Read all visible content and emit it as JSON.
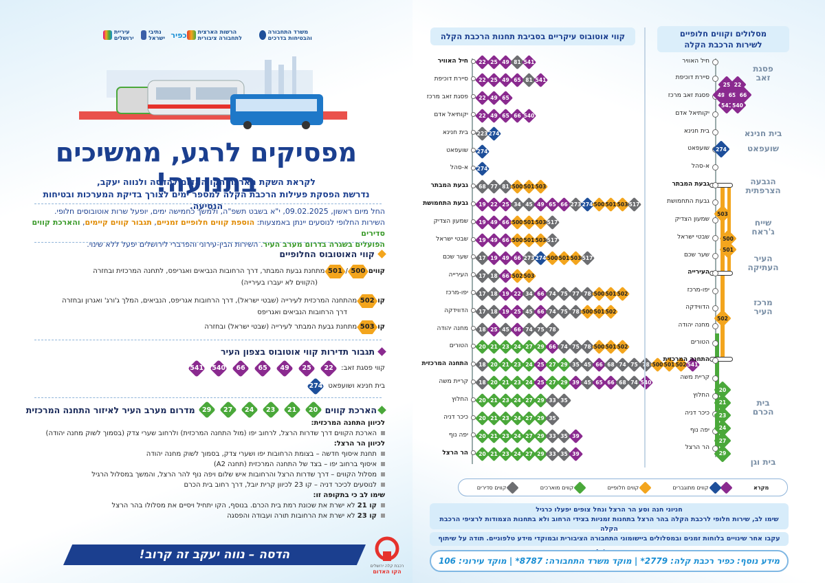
{
  "colors": {
    "purple": "#8a2a8f",
    "gray": "#6d6e71",
    "blue": "#1e4f9a",
    "green": "#4aa83a",
    "orange": "#f3a51d",
    "navy": "#1b3f8f"
  },
  "logos": [
    "משרד התחבורה והבטיחות בדרכים",
    "הרשות הארצית לתחבורה ציבורית",
    "כפיר",
    "נתיבי ישראל",
    "הרשות לפיתוח ירושלים",
    "עיריית ירושלים"
  ],
  "title": "מפסיקים לרגע, ממשיכים בתנועה!",
  "subtitle": [
    "לקראת השקת הארכת הקו האדום להדסה ולנווה יעקב,",
    "נדרשת הפסקת פעילות הרכבת הקלה למספר ימים לצורך בדיקת המערכות ובטיחות הנסיעה."
  ],
  "intro": {
    "l1": "החל מיום ראשון, 09.02.2025, י\"א בשבט תשפ\"ה, ולמשך כחמישה ימים, יופעל שרות אוטובוסים חלופי.",
    "l2a": "השירות החלופי לנוסעים יינתן באמצעות: ",
    "l2b": "הוספת קווים חלופיים זמניים",
    "l2c": ", ",
    "l2d": "תגבור קווים קיימים",
    "l2e": ", ",
    "l2f": "והארכת קווים סדירים",
    "l3a": "הפועלים בשגרה בדרום מערב העיר",
    "l3b": ". השירות הבין-עירוני והפרברי לירושלים יפעל ללא שינוי."
  },
  "alt": {
    "head": "קווי האוטובוס החלופיים",
    "r1_prefix": "קווים",
    "r1_sep": "/",
    "r1_text": "מתחנת גבעת המבתר, דרך הרחובות הנביאים ואגריפס, לתחנה המרכזית ובחזרה",
    "r1_text2": "(הקווים לא יעברו בעירייה)",
    "r2_prefix": "קו",
    "r2_text": "מהתחנה המרכזית לעירייה (שבטי ישראל), דרך הרחובות אגריפס, הנביאים, המלך ג'ורג' ואגרון ובחזרה",
    "r2_text2": "דרך הרחובות הנביאים ואגריפס",
    "r3_prefix": "קו",
    "r3_text": "מתחנת גבעת המבתר לעירייה (שבטי ישראל) ובחזרה",
    "lines": [
      "500",
      "501",
      "502",
      "503"
    ]
  },
  "north": {
    "head": "תגבור תדירות קווי אוטובוס בצפון העיר",
    "r1": "קווי פסגת זאב:",
    "r1_lines": [
      "22",
      "25",
      "49",
      "65",
      "66",
      "540",
      "541"
    ],
    "r2": "בית חנינא ושועפאט",
    "r2_lines": [
      "274"
    ]
  },
  "ext": {
    "head_a": "הארכת קווים",
    "head_b": "מדרום מערב העיר לאיזור התחנה המרכזית",
    "lines": [
      "20",
      "21",
      "23",
      "24",
      "27",
      "29"
    ],
    "to_cbs": "לכיוון התחנה המרכזית:",
    "to_cbs_1": "הארכת הקווים דרך שדרות הרצל, לרחוב יפו (מול התחנה המרכזית) ולרחוב שערי צדק (בסמוך לשוק מחנה יהודה)",
    "to_herzl": "לכיוון הר הרצל:",
    "to_herzl_1": "תחנת איסוף חדשה – בצומת הרחובות יפו ושערי צדק, בסמוך לשוק מחנה יהודה",
    "to_herzl_2": "איסוף ברחוב יפו – בצד של התחנה המרכזית (תחנה A2)",
    "to_herzl_3": "מסלול הקווים – דרך שדרות הרצל והרחובות איש שלום ויפה נוף להר הרצל, והמשך במסלול הרגיל",
    "to_herzl_4": "לנוסעים לכיכר דניה – קו 23 לכיוון קרית יובל, דרך רחוב בית הכרם",
    "note_head": "שימו לב כי בתקופה זו:",
    "note_1a": "קו 21",
    "note_1b": " לא ישרת את שכונת רמת בית הכרם. בנוסף, הקו יתחיל ויסיים את מסלולו בהר הרצל",
    "note_2a": "קו 23",
    "note_2b": " לא ישרת את הרחובות תורה ועבודה והפסגה"
  },
  "banner": "הדסה – נווה יעקב זה קרוב!",
  "redline": {
    "top": "רכבת קלה ירושלים",
    "bottom": "הקו האדום"
  },
  "main_title": "קווי אוטובוס עיקריים בסביבת תחנות הרכבת הקלה",
  "alt_title": [
    "מסלולים וקווים חלופיים",
    "לשירות הרכבת הקלה"
  ],
  "stations": [
    {
      "name": "חיל האוויר",
      "bold": true,
      "chips": [
        [
          "22",
          "p"
        ],
        [
          "25",
          "p"
        ],
        [
          "49",
          "p"
        ],
        [
          "81",
          "g"
        ],
        [
          "541",
          "p"
        ]
      ]
    },
    {
      "name": "סיירת דוכיפת",
      "bold": false,
      "chips": [
        [
          "22",
          "p"
        ],
        [
          "25",
          "p"
        ],
        [
          "49",
          "p"
        ],
        [
          "65",
          "p"
        ],
        [
          "81",
          "g"
        ],
        [
          "541",
          "p"
        ]
      ]
    },
    {
      "name": "פסגת זאב מרכז",
      "bold": false,
      "chips": [
        [
          "22",
          "p"
        ],
        [
          "49",
          "p"
        ],
        [
          "65",
          "p"
        ]
      ]
    },
    {
      "name": "יקותיאל אדם",
      "bold": false,
      "chips": [
        [
          "22",
          "p"
        ],
        [
          "49",
          "p"
        ],
        [
          "65",
          "p"
        ],
        [
          "66",
          "p"
        ],
        [
          "540",
          "p"
        ]
      ]
    },
    {
      "name": "בית חנינא",
      "bold": false,
      "chips": [
        [
          "223",
          "g"
        ],
        [
          "274",
          "b"
        ]
      ]
    },
    {
      "name": "שועפאט",
      "bold": false,
      "chips": [
        [
          "274",
          "b"
        ]
      ]
    },
    {
      "name": "א-סהל",
      "bold": false,
      "chips": [
        [
          "274",
          "b"
        ]
      ]
    },
    {
      "name": "גבעת המבתר",
      "bold": true,
      "chips": [
        [
          "68",
          "g"
        ],
        [
          "77",
          "g"
        ],
        [
          "81",
          "g"
        ],
        [
          "500",
          "o"
        ],
        [
          "501",
          "o"
        ],
        [
          "503",
          "o"
        ]
      ]
    },
    {
      "name": "גבעת התחמושת",
      "bold": true,
      "chips": [
        [
          "19",
          "p"
        ],
        [
          "22",
          "p"
        ],
        [
          "25",
          "p"
        ],
        [
          "34",
          "g"
        ],
        [
          "45",
          "g"
        ],
        [
          "49",
          "p"
        ],
        [
          "65",
          "p"
        ],
        [
          "66",
          "p"
        ],
        [
          "273",
          "g"
        ],
        [
          "274",
          "b"
        ],
        [
          "500",
          "o"
        ],
        [
          "501",
          "o"
        ],
        [
          "503",
          "o"
        ],
        [
          "517",
          "g"
        ]
      ]
    },
    {
      "name": "שמעון הצדיק",
      "bold": false,
      "chips": [
        [
          "19",
          "p"
        ],
        [
          "49",
          "p"
        ],
        [
          "66",
          "p"
        ],
        [
          "500",
          "o"
        ],
        [
          "501",
          "o"
        ],
        [
          "503",
          "o"
        ],
        [
          "517",
          "g"
        ]
      ]
    },
    {
      "name": "שבטי ישראל",
      "bold": false,
      "chips": [
        [
          "19",
          "p"
        ],
        [
          "49",
          "p"
        ],
        [
          "66",
          "p"
        ],
        [
          "500",
          "o"
        ],
        [
          "501",
          "o"
        ],
        [
          "503",
          "o"
        ],
        [
          "517",
          "g"
        ]
      ]
    },
    {
      "name": "שער שכם",
      "bold": false,
      "chips": [
        [
          "17",
          "g"
        ],
        [
          "19",
          "p"
        ],
        [
          "49",
          "p"
        ],
        [
          "66",
          "p"
        ],
        [
          "273",
          "g"
        ],
        [
          "274",
          "b"
        ],
        [
          "500",
          "o"
        ],
        [
          "501",
          "o"
        ],
        [
          "503",
          "o"
        ],
        [
          "517",
          "g"
        ]
      ]
    },
    {
      "name": "העירייה",
      "bold": false,
      "chips": [
        [
          "17",
          "g"
        ],
        [
          "18",
          "g"
        ],
        [
          "66",
          "p"
        ],
        [
          "502",
          "o"
        ],
        [
          "503",
          "o"
        ]
      ]
    },
    {
      "name": "יפו-מרכז",
      "bold": false,
      "chips": [
        [
          "17",
          "g"
        ],
        [
          "18",
          "g"
        ],
        [
          "19",
          "p"
        ],
        [
          "22",
          "p"
        ],
        [
          "34",
          "g"
        ],
        [
          "66",
          "p"
        ],
        [
          "74",
          "g"
        ],
        [
          "75",
          "g"
        ],
        [
          "77",
          "g"
        ],
        [
          "78",
          "g"
        ],
        [
          "500",
          "o"
        ],
        [
          "501",
          "o"
        ],
        [
          "502",
          "o"
        ]
      ]
    },
    {
      "name": "הדווידקה",
      "bold": false,
      "chips": [
        [
          "17",
          "g"
        ],
        [
          "18",
          "g"
        ],
        [
          "19",
          "p"
        ],
        [
          "25",
          "p"
        ],
        [
          "45",
          "g"
        ],
        [
          "66",
          "p"
        ],
        [
          "74",
          "g"
        ],
        [
          "75",
          "g"
        ],
        [
          "78",
          "g"
        ],
        [
          "500",
          "o"
        ],
        [
          "501",
          "o"
        ],
        [
          "502",
          "o"
        ]
      ]
    },
    {
      "name": "מחנה יהודה",
      "bold": false,
      "chips": [
        [
          "18",
          "g"
        ],
        [
          "25",
          "p"
        ],
        [
          "45",
          "g"
        ],
        [
          "66",
          "p"
        ],
        [
          "74",
          "g"
        ],
        [
          "75",
          "g"
        ],
        [
          "78",
          "g"
        ]
      ]
    },
    {
      "name": "הטורים",
      "bold": false,
      "chips": [
        [
          "20",
          "G"
        ],
        [
          "21",
          "G"
        ],
        [
          "23",
          "G"
        ],
        [
          "24",
          "G"
        ],
        [
          "27",
          "G"
        ],
        [
          "29",
          "G"
        ],
        [
          "66",
          "p"
        ],
        [
          "74",
          "g"
        ],
        [
          "75",
          "g"
        ],
        [
          "78",
          "g"
        ],
        [
          "500",
          "o"
        ],
        [
          "501",
          "o"
        ],
        [
          "502",
          "o"
        ]
      ]
    },
    {
      "name": "התחנה המרכזית",
      "bold": true,
      "chips": [
        [
          "18",
          "g"
        ],
        [
          "20",
          "G"
        ],
        [
          "21",
          "G"
        ],
        [
          "23",
          "G"
        ],
        [
          "24",
          "G"
        ],
        [
          "25",
          "p"
        ],
        [
          "27",
          "G"
        ],
        [
          "29",
          "G"
        ],
        [
          "35",
          "g"
        ],
        [
          "45",
          "g"
        ],
        [
          "66",
          "p"
        ],
        [
          "68",
          "g"
        ],
        [
          "74",
          "g"
        ],
        [
          "75",
          "g"
        ],
        [
          "78",
          "g"
        ],
        [
          "500",
          "o"
        ],
        [
          "501",
          "o"
        ],
        [
          "502",
          "o"
        ],
        [
          "541",
          "p"
        ]
      ]
    },
    {
      "name": "קריית משה",
      "bold": false,
      "chips": [
        [
          "18",
          "g"
        ],
        [
          "20",
          "G"
        ],
        [
          "21",
          "G"
        ],
        [
          "23",
          "G"
        ],
        [
          "24",
          "G"
        ],
        [
          "25",
          "p"
        ],
        [
          "27",
          "G"
        ],
        [
          "29",
          "G"
        ],
        [
          "39",
          "p"
        ],
        [
          "45",
          "g"
        ],
        [
          "65",
          "p"
        ],
        [
          "66",
          "p"
        ],
        [
          "68",
          "g"
        ],
        [
          "74",
          "g"
        ],
        [
          "540",
          "p"
        ]
      ]
    },
    {
      "name": "החלוץ",
      "bold": false,
      "chips": [
        [
          "20",
          "G"
        ],
        [
          "21",
          "G"
        ],
        [
          "23",
          "G"
        ],
        [
          "24",
          "G"
        ],
        [
          "27",
          "G"
        ],
        [
          "29",
          "G"
        ],
        [
          "33",
          "g"
        ],
        [
          "35",
          "g"
        ]
      ]
    },
    {
      "name": "כיכר דניה",
      "bold": false,
      "chips": [
        [
          "20",
          "G"
        ],
        [
          "21",
          "G"
        ],
        [
          "23",
          "G"
        ],
        [
          "24",
          "G"
        ],
        [
          "27",
          "G"
        ],
        [
          "29",
          "G"
        ],
        [
          "35",
          "g"
        ]
      ]
    },
    {
      "name": "יפה נוף",
      "bold": false,
      "chips": [
        [
          "20",
          "G"
        ],
        [
          "21",
          "G"
        ],
        [
          "23",
          "G"
        ],
        [
          "24",
          "G"
        ],
        [
          "27",
          "G"
        ],
        [
          "29",
          "G"
        ],
        [
          "33",
          "g"
        ],
        [
          "35",
          "g"
        ],
        [
          "39",
          "p"
        ]
      ]
    },
    {
      "name": "הר הרצל",
      "bold": true,
      "chips": [
        [
          "20",
          "G"
        ],
        [
          "21",
          "G"
        ],
        [
          "23",
          "G"
        ],
        [
          "24",
          "G"
        ],
        [
          "27",
          "G"
        ],
        [
          "29",
          "G"
        ],
        [
          "33",
          "g"
        ],
        [
          "35",
          "g"
        ],
        [
          "39",
          "p"
        ]
      ]
    }
  ],
  "route_stops": [
    {
      "name": "חיל האוויר",
      "bold": false
    },
    {
      "name": "סיירת דוכיפת",
      "bold": false
    },
    {
      "name": "פסגת זאב מרכז",
      "bold": false
    },
    {
      "name": "יקותיאל אדם",
      "bold": false
    },
    {
      "name": "בית חנינא",
      "bold": false
    },
    {
      "name": "שועפאט",
      "bold": false
    },
    {
      "name": "א-סהל",
      "bold": false
    },
    {
      "name": "גבעת המבתר",
      "bold": true
    },
    {
      "name": "גבעת התחמושת",
      "bold": false
    },
    {
      "name": "שמעון הצדיק",
      "bold": false
    },
    {
      "name": "שבטי ישראל",
      "bold": false
    },
    {
      "name": "שער שכם",
      "bold": false
    },
    {
      "name": "העירייה",
      "bold": true
    },
    {
      "name": "יפו-מרכז",
      "bold": false
    },
    {
      "name": "הדווידקה",
      "bold": false
    },
    {
      "name": "מחנה יהודה",
      "bold": false
    },
    {
      "name": "הטורים",
      "bold": false
    },
    {
      "name": "התחנה המרכזית",
      "bold": true
    },
    {
      "name": "קריית משה",
      "bold": false
    },
    {
      "name": "החלוץ",
      "bold": false
    },
    {
      "name": "כיכר דניה",
      "bold": false
    },
    {
      "name": "יפה נוף",
      "bold": false
    },
    {
      "name": "הר הרצל",
      "bold": false
    }
  ],
  "areas": [
    [
      "פסגת",
      "זאב"
    ],
    [
      "בית חנינא"
    ],
    [
      "שועפאט"
    ],
    [
      "הגבעה",
      "הצרפתית"
    ],
    [
      "שייח",
      "ג'ראח"
    ],
    [
      "העיר",
      "העתיקה"
    ],
    [
      "מרכז",
      "העיר"
    ],
    [
      "בית",
      "הכרם"
    ],
    [
      "בית וגן"
    ]
  ],
  "pz_lines": [
    "22",
    "25",
    "49",
    "66",
    "65",
    "541",
    "540"
  ],
  "shuafat_line": "274",
  "orange_lines": [
    "503",
    "500",
    "501",
    "502"
  ],
  "green_lines": [
    "20",
    "21",
    "23",
    "24",
    "27",
    "29"
  ],
  "legend": {
    "title": "מקרא",
    "a": "קווים מתוגברים",
    "b": "קווים חלופיים",
    "c": "קווים מוארכים",
    "d": "קווים סדירים"
  },
  "notes": {
    "n1": "חניוני חנה וסע הר הרצל ונחל צופים יפעלו כרגיל",
    "n2": "שימו לב, שירות חלופי לרכבת הקלה בהר הרצל בתחנות זמניות בצידי הרחוב ולא בתחנות הצמודות לרציפי הרכבת הקלה",
    "n3": "עקבו אחר שינויים בלוחות זמנים ובמסלולים ביישומוני התחבורה הציבורית ובמוקדי מידע טלפוניים. תודה על שיתוף הפעולה!"
  },
  "info": "מידע נוסף: כפיר רכבת קלה: 2779*  |  מוקד משרד התחבורה: 8787*  |  מוקד עירוני: 106"
}
